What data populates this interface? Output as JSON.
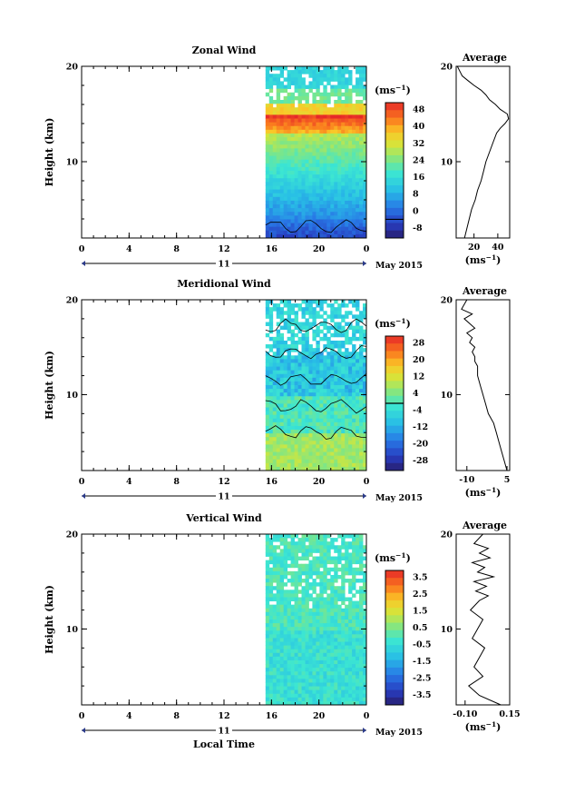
{
  "chart_data": [
    {
      "type": "heatmap",
      "title": "Zonal Wind",
      "ylabel": "Height (km)",
      "ylim": [
        2,
        20
      ],
      "y_ticks": [
        "10",
        "20"
      ],
      "xlim": [
        0,
        24
      ],
      "x_ticks": [
        "0",
        "4",
        "8",
        "12",
        "16",
        "20",
        "0"
      ],
      "date_row_label": "11",
      "date_suffix": "May 2015",
      "data_start_hour": 15.5,
      "colorbar": {
        "unit": "(ms",
        "unit_sup": "−1",
        "unit_end": ")",
        "range": [
          -8,
          50
        ],
        "ticks": [
          "48",
          "40",
          "32",
          "24",
          "16",
          "8",
          "0",
          "-8"
        ],
        "zero_contour": 0
      },
      "profile": {
        "title": "Average",
        "xlabel": "(ms",
        "xlabel_sup": "−1",
        "xlabel_end": ")",
        "xlim": [
          5,
          50
        ],
        "x_ticks": [
          "20",
          "40"
        ],
        "x": [
          12,
          14,
          16,
          18,
          21,
          23,
          26,
          28,
          30,
          33,
          36,
          39,
          42,
          46,
          49,
          48,
          42,
          38,
          33,
          30,
          26,
          20,
          15,
          10,
          6
        ],
        "y": [
          2,
          3,
          4,
          5,
          6,
          7,
          8,
          9,
          10,
          11,
          12,
          13,
          13.5,
          14,
          14.5,
          15,
          15.5,
          16,
          16.5,
          17,
          17.5,
          18,
          18.5,
          19,
          20
        ]
      }
    },
    {
      "type": "heatmap",
      "title": "Meridional Wind",
      "ylabel": "Height (km)",
      "ylim": [
        2,
        20
      ],
      "y_ticks": [
        "10",
        "20"
      ],
      "xlim": [
        0,
        24
      ],
      "x_ticks": [
        "0",
        "4",
        "8",
        "12",
        "16",
        "20",
        "0"
      ],
      "date_row_label": "11",
      "date_suffix": "May 2015",
      "data_start_hour": 15.5,
      "colorbar": {
        "unit": "(ms",
        "unit_sup": "−1",
        "unit_end": ")",
        "range": [
          -28,
          28
        ],
        "ticks": [
          "28",
          "20",
          "12",
          "4",
          "-4",
          "-12",
          "-20",
          "-28"
        ],
        "zero_contour": 0
      },
      "profile": {
        "title": "Average",
        "xlabel": "(ms",
        "xlabel_sup": "−1",
        "xlabel_end": ")",
        "xlim": [
          -14,
          6
        ],
        "x_ticks": [
          "-10",
          "5"
        ],
        "x": [
          5,
          4,
          3,
          2,
          1,
          0,
          -2,
          -3,
          -4,
          -5,
          -6,
          -6,
          -7,
          -7,
          -8,
          -7,
          -9,
          -8,
          -10,
          -7,
          -9,
          -11,
          -8,
          -12,
          -10
        ],
        "y": [
          2,
          3,
          4,
          5,
          6,
          7,
          8,
          9,
          10,
          11,
          12,
          13,
          13.5,
          14,
          14.5,
          15,
          15.5,
          16,
          16.5,
          17,
          17.5,
          18,
          18.5,
          19,
          20
        ]
      }
    },
    {
      "type": "heatmap",
      "title": "Vertical Wind",
      "ylabel": "Height (km)",
      "ylim": [
        2,
        20
      ],
      "y_ticks": [
        "10",
        "20"
      ],
      "xlim": [
        0,
        24
      ],
      "x_ticks": [
        "0",
        "4",
        "8",
        "12",
        "16",
        "20",
        "0"
      ],
      "date_row_label": "11",
      "date_suffix": "May 2015",
      "xlabel": "Local Time",
      "data_start_hour": 15.5,
      "colorbar": {
        "unit": "(ms",
        "unit_sup": "−1",
        "unit_end": ")",
        "range": [
          -3.5,
          3.5
        ],
        "ticks": [
          "3.5",
          "2.5",
          "1.5",
          "0.5",
          "-0.5",
          "-1.5",
          "-2.5",
          "-3.5"
        ]
      },
      "profile": {
        "title": "Average",
        "xlabel": "(ms",
        "xlabel_sup": "−1",
        "xlabel_end": ")",
        "xlim": [
          -0.15,
          0.15
        ],
        "x_ticks": [
          "-0.10",
          "0.15"
        ],
        "x": [
          0.1,
          -0.02,
          -0.08,
          0.0,
          -0.05,
          -0.02,
          0.01,
          -0.06,
          -0.03,
          0.0,
          -0.07,
          -0.02,
          0.03,
          -0.04,
          0.02,
          -0.05,
          0.06,
          -0.03,
          0.01,
          -0.06,
          0.04,
          -0.02,
          0.03,
          -0.05,
          0.0
        ],
        "y": [
          2,
          3,
          4,
          5,
          6,
          7,
          8,
          9,
          10,
          11,
          12,
          13,
          13.5,
          14,
          14.5,
          15,
          15.5,
          16,
          16.5,
          17,
          17.5,
          18,
          18.5,
          19,
          20
        ]
      }
    }
  ]
}
